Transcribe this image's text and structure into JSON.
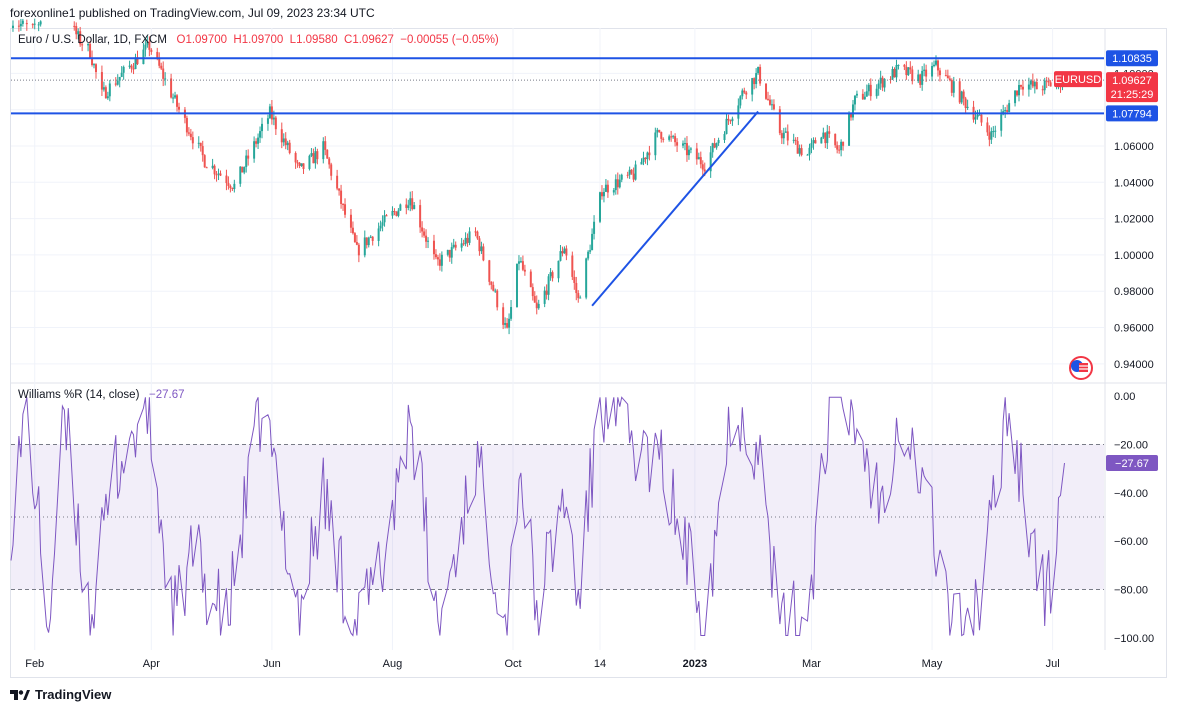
{
  "header": {
    "published_line": "forexonline1 published on TradingView.com, Jul 09, 2023 23:34 UTC"
  },
  "legend": {
    "symbol": "Euro / U.S. Dollar, 1D, FXCM",
    "open": "O1.09700",
    "high": "H1.09700",
    "low": "L1.09580",
    "close": "C1.09627",
    "change": "−0.00055 (−0.05%)"
  },
  "indicator": {
    "name": "Williams %R (14, close)",
    "value": "−27.67"
  },
  "footer": {
    "brand": "TradingView"
  },
  "colors": {
    "up": "#26a69a",
    "down": "#ef5350",
    "line": "#1e53e5",
    "wr": "#7e57c2",
    "price_badge": "#f23645"
  },
  "icons": {
    "flag": "eur-usd-flag-icon",
    "logo": "tradingview-logo-icon"
  },
  "chart_data": [
    {
      "type": "candlestick",
      "title": "Euro / U.S. Dollar, 1D, FXCM",
      "ylim": [
        0.93,
        1.125
      ],
      "y_ticks": [
        "0.94000",
        "0.96000",
        "0.98000",
        "1.00000",
        "1.02000",
        "1.04000",
        "1.06000",
        "1.08000",
        "1.10000"
      ],
      "x_ticks": [
        "Feb",
        "Apr",
        "Jun",
        "Aug",
        "Oct",
        "14",
        "2023",
        "Mar",
        "May",
        "Jul"
      ],
      "x_tick_dates": [
        "2022-02-01",
        "2022-04-01",
        "2022-06-01",
        "2022-08-01",
        "2022-10-01",
        "2022-11-14",
        "2023-01-01",
        "2023-03-01",
        "2023-05-01",
        "2023-07-01"
      ],
      "x_range": [
        "2022-01-20",
        "2023-07-27"
      ],
      "anchors": [
        [
          "2022-01-20",
          1.129
        ],
        [
          "2022-02-01",
          1.124
        ],
        [
          "2022-02-10",
          1.142
        ],
        [
          "2022-02-24",
          1.118
        ],
        [
          "2022-03-01",
          1.112
        ],
        [
          "2022-03-07",
          1.088
        ],
        [
          "2022-03-31",
          1.115
        ],
        [
          "2022-04-14",
          1.082
        ],
        [
          "2022-04-28",
          1.052
        ],
        [
          "2022-05-13",
          1.038
        ],
        [
          "2022-05-31",
          1.078
        ],
        [
          "2022-06-15",
          1.046
        ],
        [
          "2022-06-27",
          1.059
        ],
        [
          "2022-07-14",
          1.002
        ],
        [
          "2022-07-26",
          1.016
        ],
        [
          "2022-08-10",
          1.032
        ],
        [
          "2022-08-23",
          0.995
        ],
        [
          "2022-09-12",
          1.012
        ],
        [
          "2022-09-28",
          0.957
        ],
        [
          "2022-10-04",
          0.998
        ],
        [
          "2022-10-13",
          0.969
        ],
        [
          "2022-10-27",
          1.005
        ],
        [
          "2022-11-03",
          0.975
        ],
        [
          "2022-11-15",
          1.036
        ],
        [
          "2022-12-01",
          1.044
        ],
        [
          "2022-12-14",
          1.068
        ],
        [
          "2023-01-06",
          1.05
        ],
        [
          "2023-01-26",
          1.091
        ],
        [
          "2023-02-02",
          1.1
        ],
        [
          "2023-02-13",
          1.068
        ],
        [
          "2023-02-27",
          1.055
        ],
        [
          "2023-03-06",
          1.068
        ],
        [
          "2023-03-15",
          1.057
        ],
        [
          "2023-03-23",
          1.085
        ],
        [
          "2023-04-14",
          1.102
        ],
        [
          "2023-04-25",
          1.097
        ],
        [
          "2023-05-03",
          1.104
        ],
        [
          "2023-05-31",
          1.066
        ],
        [
          "2023-06-15",
          1.095
        ],
        [
          "2023-06-23",
          1.092
        ],
        [
          "2023-07-07",
          1.096
        ]
      ],
      "levels": [
        {
          "value": 1.10835,
          "label": "1.10835"
        },
        {
          "value": 1.07794,
          "label": "1.07794"
        }
      ],
      "trendline": {
        "from": [
          "2022-11-10",
          0.972
        ],
        "to": [
          "2023-02-02",
          1.079
        ]
      },
      "last_price": {
        "value": 1.09627,
        "label": "1.09627",
        "symbol": "EURUSD",
        "countdown": "21:25:29"
      }
    },
    {
      "type": "line",
      "title": "Williams %R (14, close)",
      "ylim": [
        -105,
        5
      ],
      "y_ticks": [
        "0.00",
        "−20.00",
        "−40.00",
        "−60.00",
        "−80.00",
        "−100.00"
      ],
      "levels": [
        -20,
        -50,
        -80
      ],
      "band": [
        -80,
        -20
      ],
      "last_value": {
        "value": -27.67,
        "label": "−27.67"
      },
      "anchors": [
        [
          "2022-01-20",
          -50
        ],
        [
          "2022-01-28",
          -5
        ],
        [
          "2022-02-08",
          -95
        ],
        [
          "2022-02-16",
          -10
        ],
        [
          "2022-03-01",
          -92
        ],
        [
          "2022-03-14",
          -30
        ],
        [
          "2022-03-30",
          -5
        ],
        [
          "2022-04-12",
          -95
        ],
        [
          "2022-04-22",
          -65
        ],
        [
          "2022-05-09",
          -96
        ],
        [
          "2022-05-27",
          -3
        ],
        [
          "2022-06-15",
          -90
        ],
        [
          "2022-06-27",
          -40
        ],
        [
          "2022-07-13",
          -98
        ],
        [
          "2022-07-27",
          -70
        ],
        [
          "2022-08-10",
          -5
        ],
        [
          "2022-08-24",
          -97
        ],
        [
          "2022-09-12",
          -25
        ],
        [
          "2022-09-28",
          -96
        ],
        [
          "2022-10-04",
          -25
        ],
        [
          "2022-10-13",
          -90
        ],
        [
          "2022-10-27",
          -40
        ],
        [
          "2022-11-03",
          -85
        ],
        [
          "2022-11-14",
          -1
        ],
        [
          "2022-12-01",
          -20
        ],
        [
          "2022-12-15",
          -30
        ],
        [
          "2023-01-06",
          -90
        ],
        [
          "2023-01-20",
          -3
        ],
        [
          "2023-02-02",
          -20
        ],
        [
          "2023-02-13",
          -98
        ],
        [
          "2023-02-27",
          -90
        ],
        [
          "2023-03-10",
          -3
        ],
        [
          "2023-03-23",
          -10
        ],
        [
          "2023-04-05",
          -45
        ],
        [
          "2023-04-14",
          -5
        ],
        [
          "2023-04-28",
          -40
        ],
        [
          "2023-05-12",
          -98
        ],
        [
          "2023-05-26",
          -85
        ],
        [
          "2023-06-08",
          -2
        ],
        [
          "2023-06-19",
          -50
        ],
        [
          "2023-06-28",
          -88
        ],
        [
          "2023-07-07",
          -27.67
        ]
      ]
    }
  ]
}
